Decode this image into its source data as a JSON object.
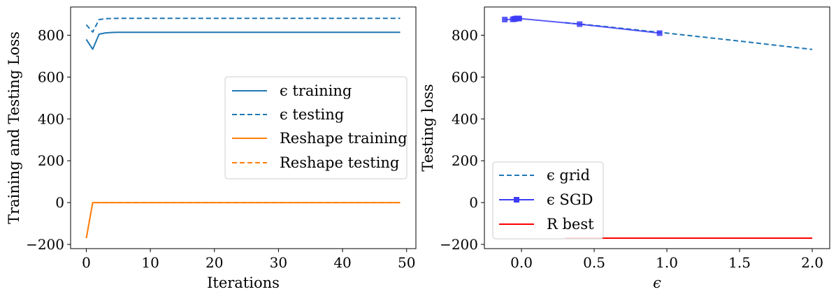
{
  "chart_data": [
    {
      "type": "line",
      "title": "",
      "xlabel": "Iterations",
      "ylabel": "Training and Testing Loss",
      "xlim": [
        -2.45,
        51.45
      ],
      "ylim": [
        -220,
        935
      ],
      "xticks": [
        0,
        10,
        20,
        30,
        40,
        50
      ],
      "xtick_labels": [
        "0",
        "10",
        "20",
        "30",
        "40",
        "50"
      ],
      "yticks": [
        -200,
        0,
        200,
        400,
        600,
        800
      ],
      "ytick_labels": [
        "−200",
        "0",
        "200",
        "400",
        "600",
        "800"
      ],
      "grid": false,
      "legend_position": "center-right",
      "series": [
        {
          "name": "ϵ training",
          "color": "#1f77b4",
          "linestyle": "solid",
          "x": [
            0,
            1,
            2,
            3,
            4,
            5,
            6,
            49
          ],
          "y": [
            780,
            733,
            805,
            811,
            813,
            814,
            814,
            814
          ]
        },
        {
          "name": "ϵ testing",
          "color": "#1f77b4",
          "linestyle": "dashed",
          "x": [
            0,
            1,
            2,
            3,
            4,
            5,
            49
          ],
          "y": [
            850,
            815,
            875,
            879,
            880,
            881,
            881
          ]
        },
        {
          "name": "Reshape training",
          "color": "#ff7f0e",
          "linestyle": "solid",
          "x": [
            0,
            1,
            2,
            49
          ],
          "y": [
            -170,
            0,
            0,
            0
          ]
        },
        {
          "name": "Reshape testing",
          "color": "#ff7f0e",
          "linestyle": "dashed",
          "x": [
            0,
            1,
            2,
            49
          ],
          "y": [
            -170,
            0,
            0,
            0
          ]
        }
      ]
    },
    {
      "type": "line",
      "title": "",
      "xlabel": "ϵ",
      "ylabel": "Testing loss",
      "xlim": [
        -0.255,
        2.12
      ],
      "ylim": [
        -220,
        935
      ],
      "xticks": [
        0.0,
        0.5,
        1.0,
        1.5,
        2.0
      ],
      "xtick_labels": [
        "0.0",
        "0.5",
        "1.0",
        "1.5",
        "2.0"
      ],
      "yticks": [
        -200,
        0,
        200,
        400,
        600,
        800
      ],
      "ytick_labels": [
        "−200",
        "0",
        "200",
        "400",
        "600",
        "800"
      ],
      "grid": false,
      "legend_position": "lower-left",
      "series": [
        {
          "name": "ϵ grid",
          "color": "#1f77b4",
          "linestyle": "dashed",
          "marker": "none",
          "x": [
            0.3,
            0.5,
            1.0,
            1.5,
            2.0
          ],
          "y": [
            860,
            847,
            810,
            772,
            732
          ]
        },
        {
          "name": "ϵ SGD",
          "color": "#3d3df7",
          "linestyle": "solid",
          "marker": "square",
          "x": [
            -0.115,
            -0.06,
            -0.05,
            -0.045,
            -0.04,
            -0.035,
            -0.03,
            -0.025,
            -0.02,
            -0.015,
            0.4,
            0.95
          ],
          "y": [
            875,
            876,
            877,
            878,
            879,
            880,
            880,
            880,
            880,
            880,
            853,
            810
          ]
        },
        {
          "name": "R best",
          "color": "#ff0000",
          "linestyle": "solid",
          "marker": "none",
          "x": [
            0.3,
            2.0
          ],
          "y": [
            -170,
            -170
          ]
        }
      ]
    }
  ]
}
